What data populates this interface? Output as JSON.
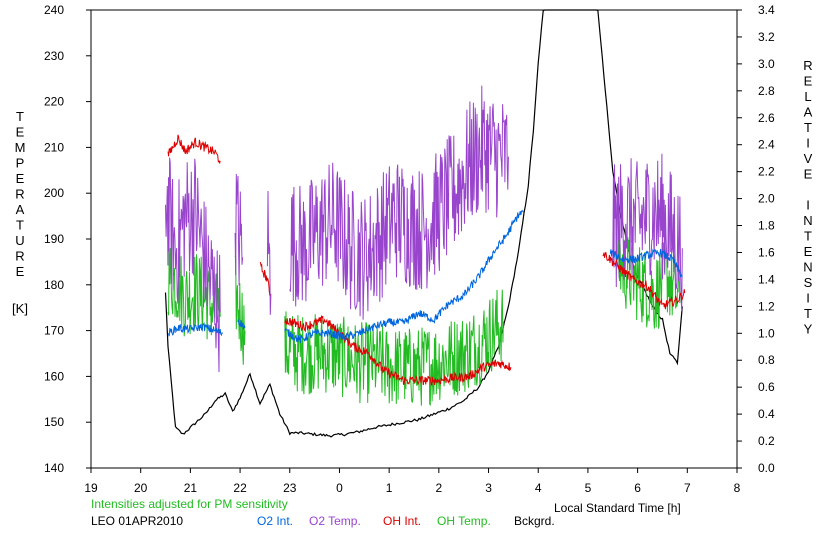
{
  "chart_data": {
    "type": "line",
    "ylabel_left": "TEMPERATURE",
    "ylabel_left_unit": "[K]",
    "ylabel_right": "RELATIVE INTENSITY",
    "xlabel": "Local Standard Time [h]",
    "note": "Intensities adjusted for PM sensitivity",
    "station": "LEO 01APR2010",
    "xlim_hours": [
      19,
      32
    ],
    "x_tick_labels": [
      "19",
      "20",
      "21",
      "22",
      "23",
      "0",
      "1",
      "2",
      "3",
      "4",
      "5",
      "6",
      "7",
      "8"
    ],
    "ylim_left": [
      140,
      240
    ],
    "y_left_ticks": [
      140,
      150,
      160,
      170,
      180,
      190,
      200,
      210,
      220,
      230,
      240
    ],
    "ylim_right": [
      0.0,
      3.4
    ],
    "y_right_tick_labels": [
      "0.0",
      "0.2",
      "0.4",
      "0.6",
      "0.8",
      "1.0",
      "1.2",
      "1.4",
      "1.6",
      "1.8",
      "2.0",
      "2.2",
      "2.4",
      "2.6",
      "2.8",
      "3.0",
      "3.2",
      "3.4"
    ],
    "grid": false,
    "legend": "bottom",
    "series": [
      {
        "name": "O2 Int.",
        "axis": "right",
        "color": "#0066dd",
        "segments": [
          {
            "x": [
              20.55,
              20.75,
              21.0,
              21.25,
              21.5,
              21.65
            ],
            "y": [
              1.0,
              1.04,
              1.03,
              1.05,
              1.02,
              1.0
            ]
          },
          {
            "x": [
              21.95,
              22.1
            ],
            "y": [
              1.1,
              1.04
            ]
          },
          {
            "x": [
              22.9,
              23.2,
              23.5,
              23.8,
              24.1,
              24.4,
              24.7,
              25.0,
              25.3,
              25.6,
              25.9,
              26.2,
              26.5,
              26.8,
              27.1,
              27.35,
              27.6,
              27.7
            ],
            "y": [
              1.02,
              0.95,
              1.0,
              1.0,
              0.97,
              1.0,
              1.05,
              1.08,
              1.08,
              1.15,
              1.1,
              1.22,
              1.28,
              1.42,
              1.6,
              1.72,
              1.88,
              1.9
            ]
          }
        ]
      },
      {
        "name": "O2 Temp.",
        "axis": "left",
        "color": "#9944cc",
        "segments": [
          {
            "x": [
              20.5,
              20.7,
              20.9,
              21.1,
              21.3,
              21.6
            ],
            "y": [
              200,
              187,
              195,
              196,
              185,
              174
            ]
          },
          {
            "x": [
              21.9,
              22.05
            ],
            "y": [
              196,
              186
            ]
          },
          {
            "x": [
              22.55,
              22.62
            ],
            "y": [
              193,
              178
            ]
          },
          {
            "x": [
              23.0,
              23.3,
              23.6,
              23.9,
              24.2,
              24.5,
              24.8,
              25.1,
              25.4,
              25.7,
              26.0,
              26.3,
              26.6,
              26.9,
              27.2,
              27.4
            ],
            "y": [
              190,
              188,
              192,
              194,
              188,
              186,
              190,
              195,
              193,
              192,
              196,
              200,
              206,
              210,
              208,
              208
            ]
          }
        ]
      },
      {
        "name": "OH Int.",
        "axis": "right",
        "color": "#dd0000",
        "segments": [
          {
            "x": [
              20.55,
              20.75,
              20.9,
              21.1,
              21.3,
              21.5,
              21.6
            ],
            "y": [
              2.32,
              2.45,
              2.35,
              2.42,
              2.38,
              2.34,
              2.28
            ]
          },
          {
            "x": [
              22.4,
              22.55,
              22.6
            ],
            "y": [
              1.5,
              1.4,
              1.28
            ]
          },
          {
            "x": [
              22.9,
              23.3,
              23.7,
              24.0,
              24.3,
              24.6,
              24.9,
              25.3,
              25.7,
              26.0,
              26.3,
              26.6,
              26.9,
              27.2,
              27.45
            ],
            "y": [
              1.1,
              1.05,
              1.1,
              1.0,
              0.9,
              0.85,
              0.72,
              0.65,
              0.65,
              0.65,
              0.67,
              0.68,
              0.75,
              0.78,
              0.75
            ]
          }
        ]
      },
      {
        "name": "OH Temp.",
        "axis": "left",
        "color": "#22bb22",
        "segments": [
          {
            "x": [
              20.55,
              20.75,
              20.9,
              21.1,
              21.3,
              21.6
            ],
            "y": [
              182,
              180,
              177,
              179,
              177,
              173
            ]
          },
          {
            "x": [
              21.9,
              22.1
            ],
            "y": [
              178,
              170
            ]
          },
          {
            "x": [
              22.9,
              23.2,
              23.5,
              23.8,
              24.1,
              24.4,
              24.7,
              25.0,
              25.3,
              25.6,
              25.9,
              26.2,
              26.5,
              26.8,
              27.1,
              27.3
            ],
            "y": [
              166,
              165,
              165,
              165,
              164,
              163,
              163,
              162,
              162,
              162,
              163,
              164,
              165,
              167,
              170,
              172
            ]
          }
        ]
      }
    ],
    "late_series": [
      {
        "name": "O2 Int.",
        "axis": "right",
        "x": [
          29.45,
          29.7,
          29.95,
          30.2,
          30.45,
          30.7,
          30.9
        ],
        "y": [
          1.6,
          1.55,
          1.55,
          1.58,
          1.6,
          1.55,
          1.42
        ]
      },
      {
        "name": "O2 Temp.",
        "axis": "left",
        "x": [
          29.5,
          29.75,
          30.0,
          30.25,
          30.5,
          30.75,
          30.9
        ],
        "y": [
          192,
          195,
          193,
          196,
          195,
          190,
          188
        ]
      },
      {
        "name": "OH Int.",
        "axis": "right",
        "x": [
          29.3,
          29.6,
          29.9,
          30.2,
          30.5,
          30.8,
          30.95
        ],
        "y": [
          1.6,
          1.5,
          1.4,
          1.35,
          1.2,
          1.25,
          1.3
        ]
      },
      {
        "name": "OH Temp.",
        "axis": "left",
        "x": [
          29.6,
          29.85,
          30.1,
          30.35,
          30.6,
          30.85
        ],
        "y": [
          185,
          182,
          180,
          178,
          182,
          176
        ]
      }
    ],
    "background": {
      "name": "Bckgrd.",
      "axis": "right",
      "color": "#000000",
      "x": [
        20.5,
        20.55,
        20.7,
        20.85,
        21.0,
        21.15,
        21.3,
        21.5,
        21.7,
        21.85,
        22.0,
        22.2,
        22.4,
        22.6,
        22.8,
        23.0,
        23.2,
        23.5,
        23.8,
        24.1,
        24.4,
        24.7,
        25.0,
        25.3,
        25.6,
        25.9,
        26.2,
        26.5,
        26.8,
        27.0,
        27.2,
        27.4,
        27.6,
        27.8,
        27.9,
        28.0,
        28.1,
        28.3,
        28.55,
        29.05,
        29.2,
        29.35,
        29.5,
        29.65,
        29.8,
        29.95,
        30.1,
        30.3,
        30.5,
        30.65,
        30.8,
        30.9
      ],
      "y": [
        1.3,
        0.9,
        0.3,
        0.25,
        0.3,
        0.35,
        0.4,
        0.5,
        0.55,
        0.42,
        0.52,
        0.7,
        0.48,
        0.62,
        0.4,
        0.26,
        0.26,
        0.25,
        0.24,
        0.25,
        0.27,
        0.3,
        0.32,
        0.34,
        0.36,
        0.4,
        0.44,
        0.5,
        0.6,
        0.72,
        0.9,
        1.2,
        1.6,
        2.1,
        2.5,
        3.0,
        3.4,
        3.45,
        3.45,
        3.45,
        3.4,
        2.8,
        2.2,
        1.9,
        1.65,
        1.45,
        1.35,
        1.2,
        1.1,
        0.85,
        0.78,
        1.2
      ]
    }
  },
  "legend_items": [
    {
      "label": "O2 Int.",
      "color": "#0066dd"
    },
    {
      "label": "O2 Temp.",
      "color": "#9944cc"
    },
    {
      "label": "OH Int.",
      "color": "#dd0000"
    },
    {
      "label": "OH Temp.",
      "color": "#22bb22"
    },
    {
      "label": "Bckgrd.",
      "color": "#000000"
    }
  ]
}
